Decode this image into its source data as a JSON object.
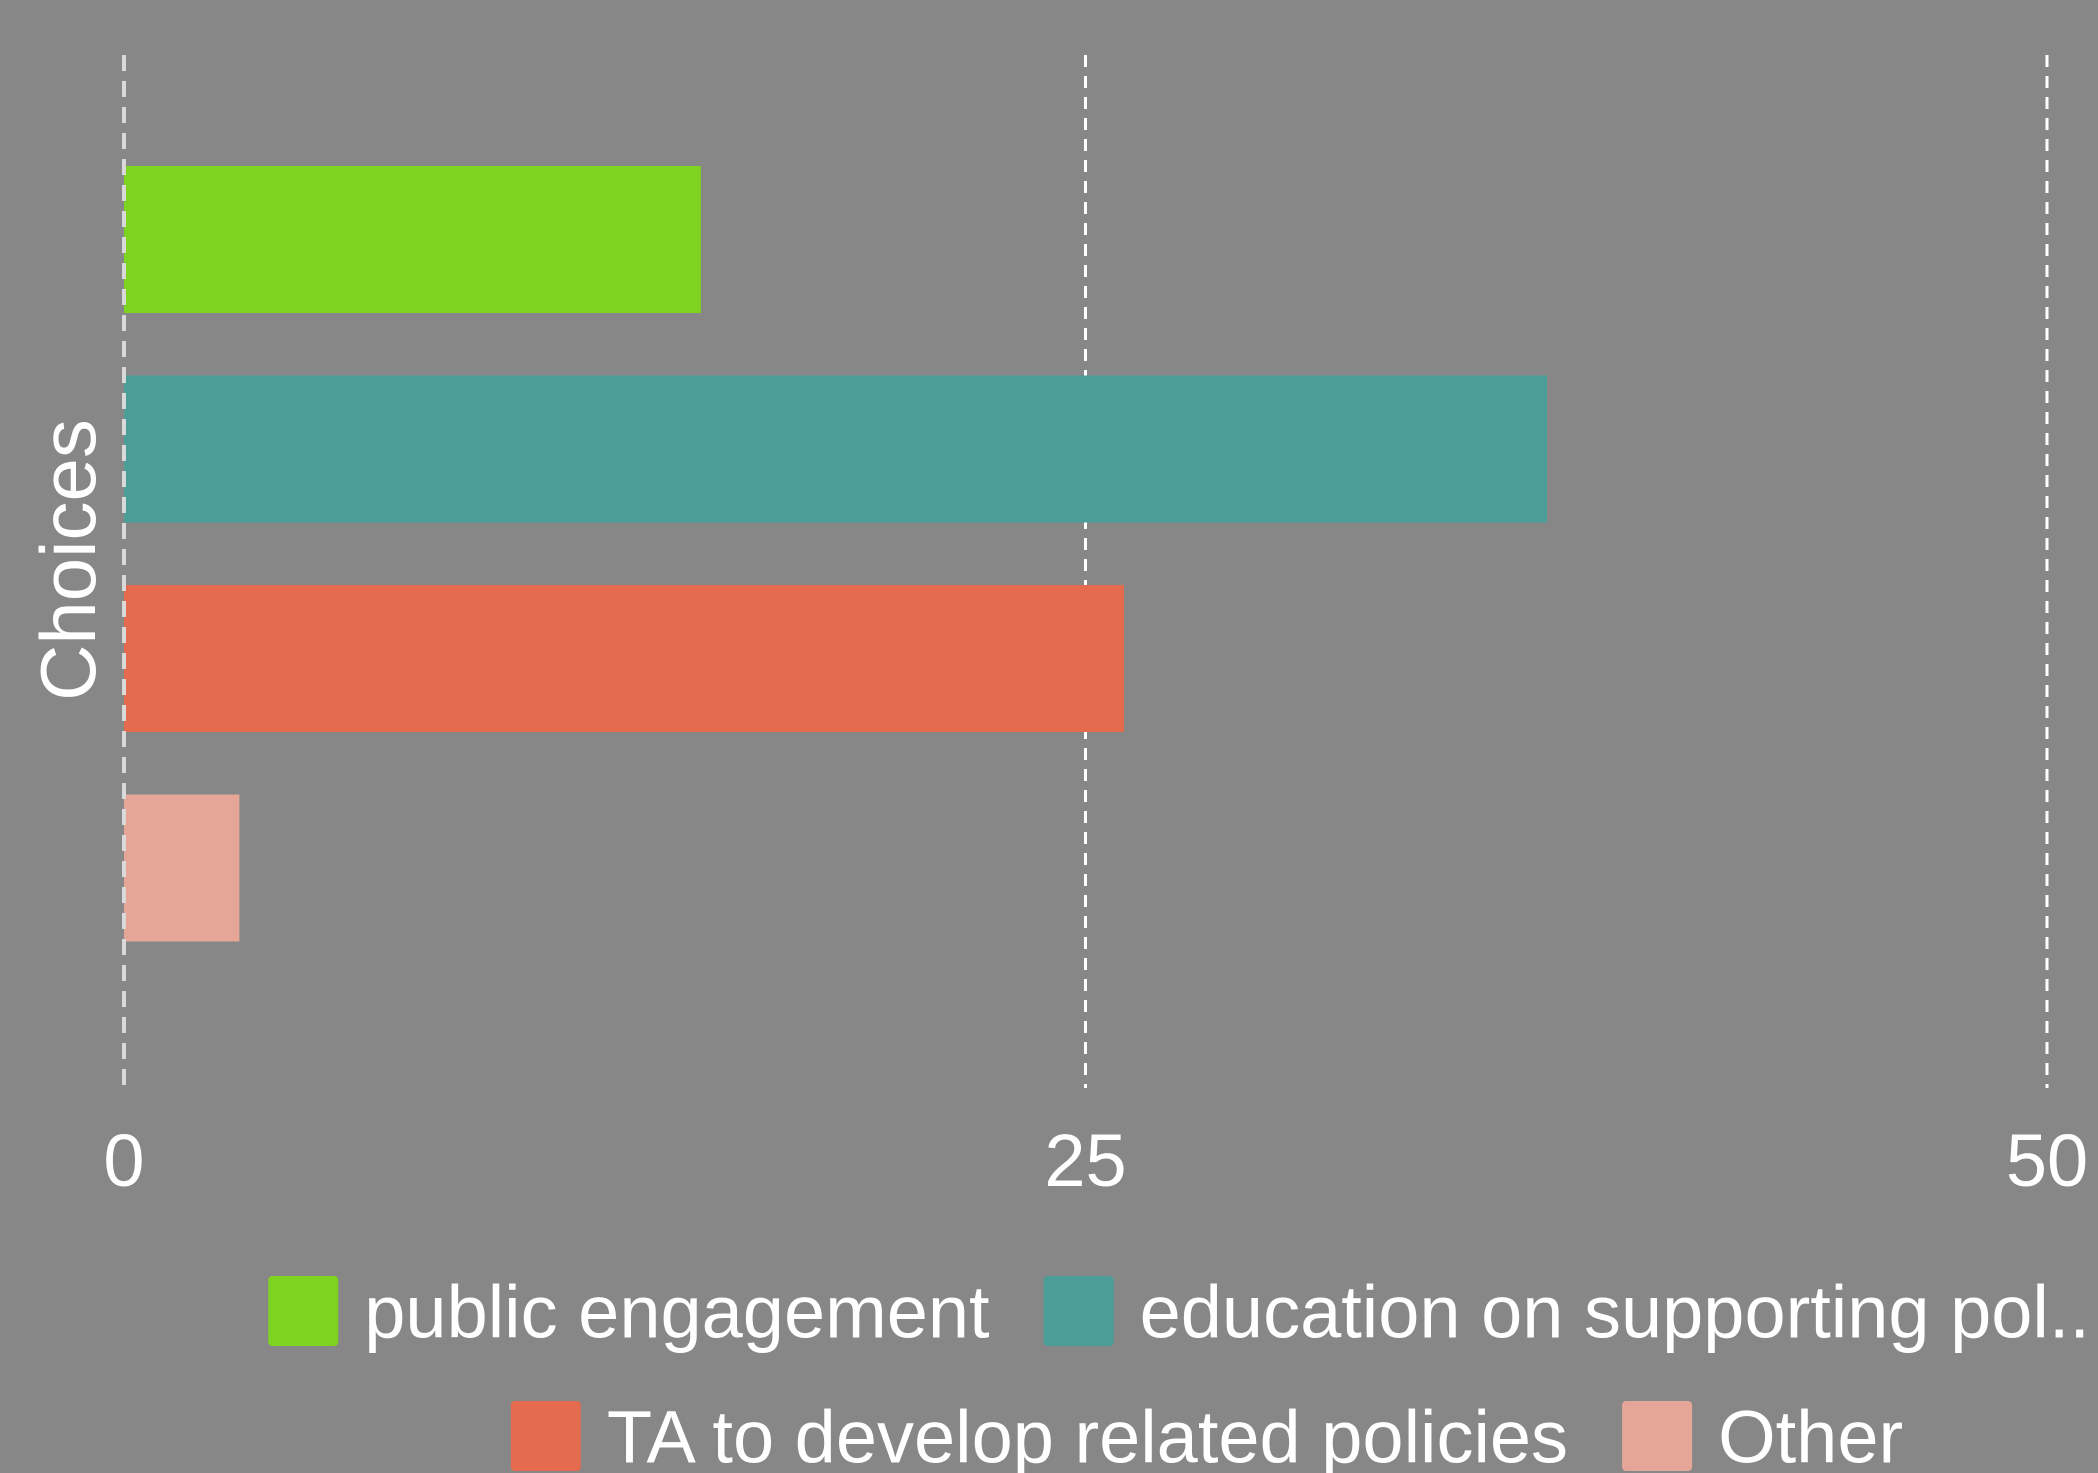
{
  "colors": {
    "background": "#878787",
    "text": "#ffffff",
    "grid": "#ffffff",
    "zero_line": "#d9d9d9"
  },
  "chart_data": {
    "type": "bar",
    "orientation": "horizontal",
    "title": "",
    "xlabel": "",
    "ylabel": "Choices",
    "xlim": [
      0,
      50
    ],
    "x_ticks": [
      0,
      25,
      50
    ],
    "x_tick_labels": [
      "0",
      "25",
      "50"
    ],
    "grid": "vertical dashed",
    "legend_position": "bottom",
    "series": [
      {
        "name": "public engagement",
        "value": 15,
        "color": "#7ed321"
      },
      {
        "name": "education on supporting pol..",
        "value": 37,
        "color": "#4a9e97"
      },
      {
        "name": "TA to develop related policies",
        "value": 26,
        "color": "#e46b4d"
      },
      {
        "name": "Other",
        "value": 3,
        "color": "#e5a698"
      }
    ]
  }
}
